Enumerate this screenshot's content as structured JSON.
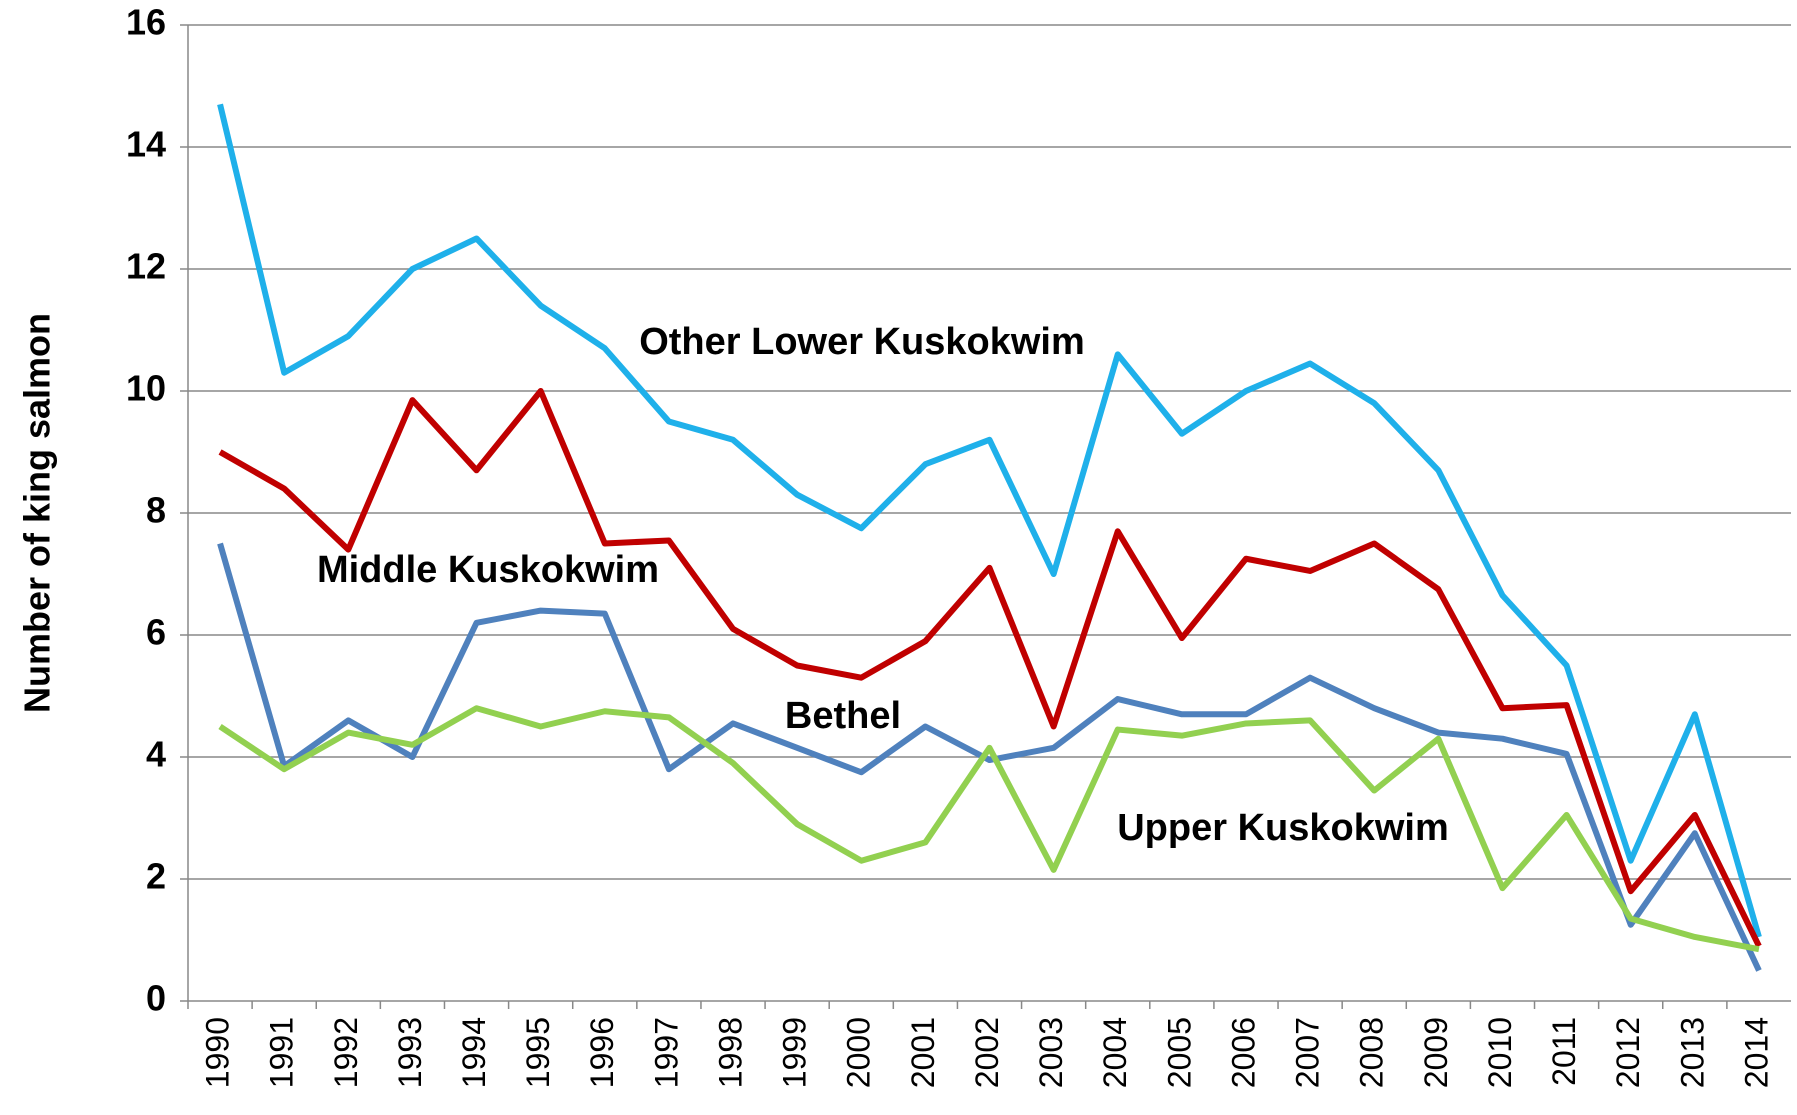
{
  "chart_data": {
    "type": "line",
    "ylabel": "Number of king salmon",
    "categories": [
      "1990",
      "1991",
      "1992",
      "1993",
      "1994",
      "1995",
      "1996",
      "1997",
      "1998",
      "1999",
      "2000",
      "2001",
      "2002",
      "2003",
      "2004",
      "2005",
      "2006",
      "2007",
      "2008",
      "2009",
      "2010",
      "2011",
      "2012",
      "2013",
      "2014"
    ],
    "series": [
      {
        "name": "Other Lower Kuskokwim",
        "color": "#1fb0ea",
        "values": [
          14.7,
          10.3,
          10.9,
          12.0,
          12.5,
          11.4,
          10.7,
          9.5,
          9.2,
          8.3,
          7.75,
          8.8,
          9.2,
          7.0,
          10.6,
          9.3,
          10.0,
          10.45,
          9.8,
          8.7,
          6.65,
          5.5,
          2.3,
          4.7,
          1.05
        ]
      },
      {
        "name": "Middle Kuskokwim",
        "color": "#c00000",
        "values": [
          9.0,
          8.4,
          7.4,
          9.85,
          8.7,
          10.0,
          7.5,
          7.55,
          6.1,
          5.5,
          5.3,
          5.9,
          7.1,
          4.5,
          7.7,
          5.95,
          7.25,
          7.05,
          7.5,
          6.75,
          4.8,
          4.85,
          1.8,
          3.05,
          0.9
        ]
      },
      {
        "name": "Bethel",
        "color": "#4f81bd",
        "values": [
          7.5,
          3.85,
          4.6,
          4.0,
          6.2,
          6.4,
          6.35,
          3.8,
          4.55,
          4.15,
          3.75,
          4.5,
          3.95,
          4.15,
          4.95,
          4.7,
          4.7,
          5.3,
          4.8,
          4.4,
          4.3,
          4.05,
          1.25,
          2.75,
          0.5
        ]
      },
      {
        "name": "Upper Kuskokwim",
        "color": "#92d050",
        "values": [
          4.5,
          3.8,
          4.4,
          4.2,
          4.8,
          4.5,
          4.75,
          4.65,
          3.9,
          2.9,
          2.3,
          2.6,
          4.15,
          2.15,
          4.45,
          4.35,
          4.55,
          4.6,
          3.45,
          4.3,
          1.85,
          3.05,
          1.35,
          1.05,
          0.85
        ]
      }
    ],
    "ylim": [
      0,
      16
    ],
    "yticks": [
      0,
      2,
      4,
      6,
      8,
      10,
      12,
      14,
      16
    ],
    "grid": true
  }
}
